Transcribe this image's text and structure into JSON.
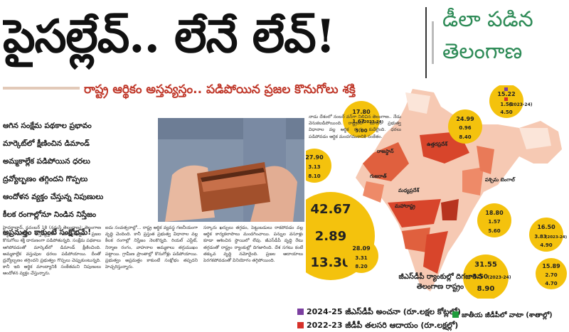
{
  "headline": "పైసల్లేవ్.. లేనే లేవ్!",
  "side_title": {
    "line1": "డీలా పడిన",
    "line2": "తెలంగాణ"
  },
  "subheadline": "రాష్ట్ర ఆర్థికం అస్తవ్యస్తం.. పడిపోయిన ప్రజల కొనుగోలు శక్తి",
  "bullets": [
    "ఆగిన సంక్షేమ పథకాల ప్రభావం",
    "మార్కెట్‌లో క్షీణించిన డిమాండ్",
    "అమ్మకాల్లేక పడిపోయిన ధరలు",
    "ద్రవ్యోల్బణం తగ్గిందని గొప్పలు",
    "ఆందోళన వ్యక్తం చేస్తున్న నిపుణులు",
    "కీలక రంగాల్లోనూ నిండిన నిస్తేజం",
    "అప్రమత్తం కాకుంటే సంక్షోభమే!"
  ],
  "columns": {
    "col1": "హైదరాబాద్, నవంబర్ 18 (నమస్తే తెలంగాణ): తెలంగాణ ఆర్థిక పరిస్థితి అస్తవ్యస్తంగా మారుతున్నది. ప్రజల కొనుగోలు శక్తి దారుణంగా పడిపోతున్నది. సంక్షేమ పథకాలు ఆగిపోవడంతో మార్కెట్‌లో డిమాండ్ క్షీణించింది. అమ్మకాల్లేక వస్తువుల ధరలు పడిపోయాయి. దీంతో ద్రవ్యోల్బణం తగ్గిందని ప్రభుత్వం గొప్పలు చెప్పుకుంటున్నది. కానీ ఇది ఆర్థిక మాంద్యానికి సంకేతమని నిపుణులు ఆందోళన వ్యక్తం చేస్తున్నారు.",
    "col2": "ఐదు సంవత్సరాల్లో... రాష్ట్ర ఆర్థిక వ్యవస్థ గణనీయంగా వృద్ధి చెందింది. కానీ ప్రస్తుత ప్రభుత్వ విధానాల వల్ల కీలక రంగాల్లో నిస్తేజం నెలకొన్నది. రియల్ ఎస్టేట్, నిర్మాణ రంగం, వాహనాల అమ్మకాలు తగ్గుముఖం పట్టాయి. గ్రామీణ ప్రాంతాల్లో కొనుగోళ్లు పడిపోయాయి. ప్రభుత్వం అప్రమత్తం కాకుంటే సంక్షోభం తప్పదని హెచ్చరిస్తున్నారు.",
    "col3": "సర్కారు ఖర్చులు తగ్గడం, పెట్టుబడులు రాకపోవడం వల్ల ఆర్థిక కార్యకలాపాలు మందగించాయి. పన్నుల వసూళ్లు కూడా ఆశించిన స్థాయిలో లేవు. జీఎస్‌డీపీ వృద్ధి రేటు తగ్గడంతో రాష్ట్రం ర్యాంకుల్లో దిగజారింది. దేశ సగటు కంటే తక్కువ వృద్ధి నమోదైంది. ప్రజల ఆదాయాలు పెరగకపోవడంతో వినియోగం తగ్గిపోయింది.",
    "mid": "నాడు దేశంలో నంబర్ వన్‌గా నిలిచిన తెలంగాణ.. నేడు వెనుకబడిపోయింది. రాష్ట్రంలో మారిన ప్రభుత్వ విధానాల వల్ల ఆర్థిక రంగం కుదేలైంది. ధరలు పడిపోవడం ఆర్థిక మందగమనానికి సంకేతం."
  },
  "map": {
    "caption": "జీఎస్‌డీపీ ర్యాంకుల్లో దిగజారిన తెలంగాణ రాష్ట్రం",
    "state_labels": {
      "rajasthan": "రాజస్థాన్",
      "uttarpradesh": "ఉత్తరప్రదేశ్",
      "gujarat": "గుజరాత్",
      "madhyapradesh": "మధ్యప్రదేశ్",
      "maharashtra": "మహారాష్ట్ర",
      "westbengal": "పశ్చిమ బెంగాల్"
    },
    "year_note": "(2023-24)"
  },
  "stats": [
    {
      "region": "jammu-kashmir",
      "v2425": "15.22",
      "v2223": "1.56",
      "v2223_note": "(2023-24)",
      "share": "4.50"
    },
    {
      "region": "punjab",
      "v2425": "17.80",
      "v2223": "1.67",
      "v2223_note": "(2023-24)",
      "share": "5.00"
    },
    {
      "region": "uttar-pradesh",
      "v2425": "24.99",
      "v2223": "0.96",
      "v2223_note": "",
      "share": "8.40"
    },
    {
      "region": "rajasthan",
      "v2425": "27.90",
      "v2223": "3.13",
      "v2223_note": "",
      "share": "8.10"
    },
    {
      "region": "maharashtra",
      "v2425": "42.67",
      "v2223": "2.89",
      "v2223_note": "",
      "share": "13.30"
    },
    {
      "region": "west-bengal",
      "v2425": "18.80",
      "v2223": "1.57",
      "v2223_note": "",
      "share": "5.60"
    },
    {
      "region": "assam",
      "v2425": "16.50",
      "v2223": "3.83",
      "v2223_note": "(2023-24)",
      "share": "4.90"
    },
    {
      "region": "karnataka",
      "v2425": "28.09",
      "v2223": "3.31",
      "v2223_note": "",
      "share": "8.20"
    },
    {
      "region": "tamil-nadu",
      "v2425": "31.55",
      "v2223": "3.50",
      "v2223_note": "(2023-24)",
      "share": "8.90"
    },
    {
      "region": "odisha",
      "v2425": "15.89",
      "v2223": "2.70",
      "v2223_note": "",
      "share": "4.70"
    }
  ],
  "legend": {
    "item1": "2024-25 జీఎస్‌డీపీ అంచనా (రూ.లక్షల కోట్లలో)",
    "item2": "2022-23 జీడీపీ తలసరి ఆదాయం (రూ.లక్షల్లో)",
    "item3": "జాతీయ జీడీపీలో వాటా (శాతాల్లో)"
  },
  "colors": {
    "headline": "#111111",
    "accent_red": "#c0392b",
    "title_green": "#2e8b57",
    "bubble": "#f4c20d",
    "legend_purple": "#7b3fa0",
    "legend_red": "#d6312a",
    "legend_green": "#1e9c3c",
    "map_dark": "#d8452b",
    "map_mid": "#ee8a68",
    "map_light": "#f6c9b3",
    "map_pale": "#fbe5d9"
  }
}
